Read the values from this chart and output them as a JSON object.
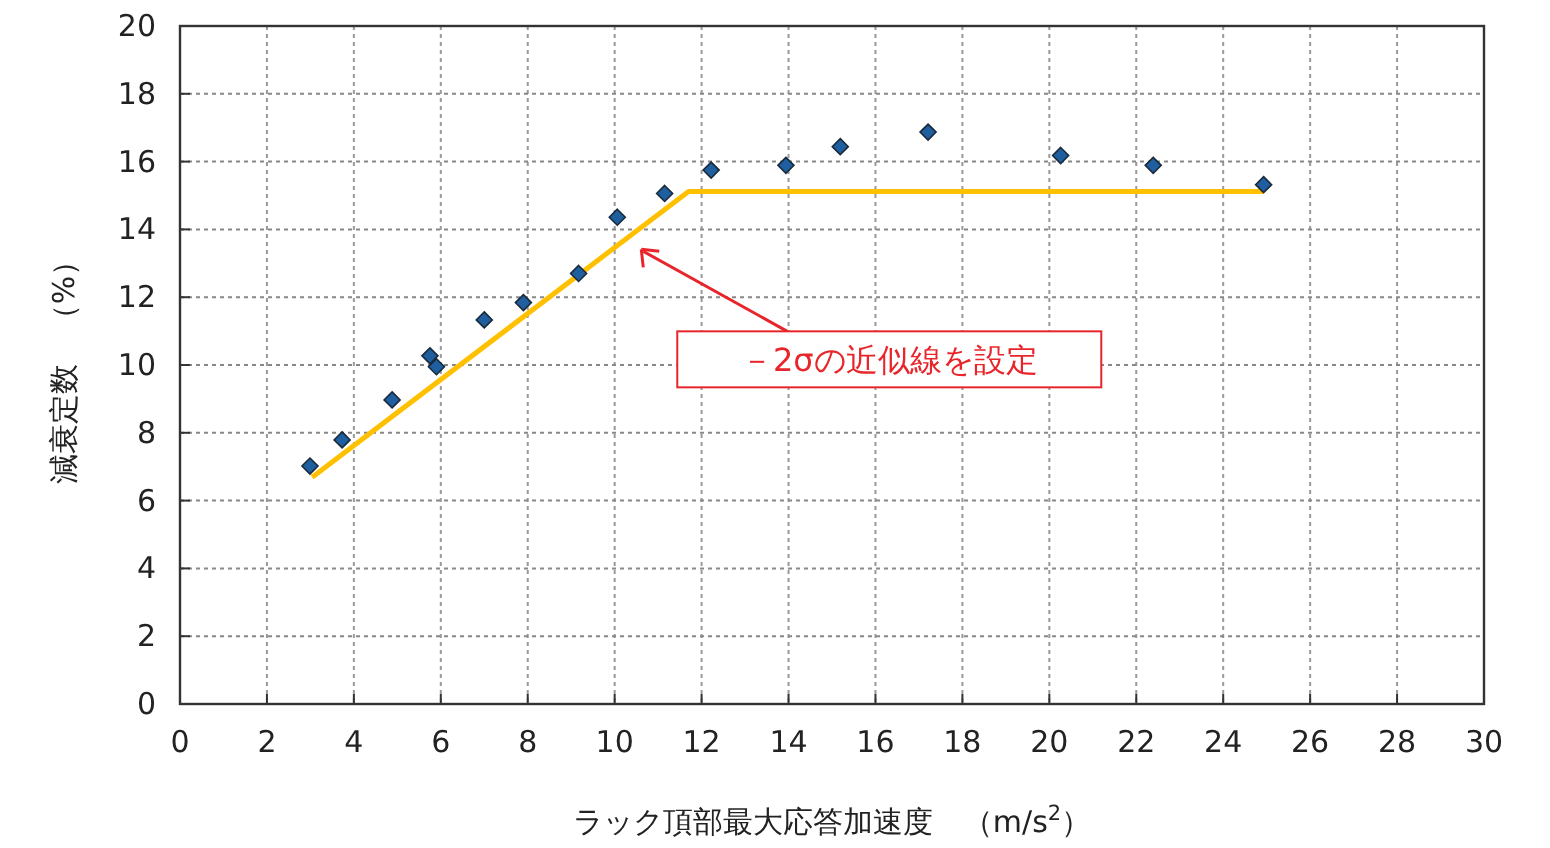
{
  "chart_data": {
    "type": "scatter",
    "xlabel": "ラック頂部最大応答加速度　（m/s$^{2}$）",
    "ylabel": "減衰定数　（%）",
    "xlim": [
      0,
      30
    ],
    "xticks": [
      0,
      2,
      4,
      6,
      8,
      10,
      12,
      14,
      16,
      18,
      20,
      22,
      24,
      26,
      28,
      30
    ],
    "ylim": [
      0,
      20
    ],
    "yticks": [
      0,
      2,
      4,
      6,
      8,
      10,
      12,
      14,
      16,
      18,
      20
    ],
    "grid": true,
    "series": [
      {
        "color": "#1f5fa0",
        "marker": "diamond",
        "x": [
          2.99,
          3.73,
          4.88,
          5.75,
          5.9,
          7.0,
          7.9,
          9.17,
          10.06,
          11.15,
          12.22,
          13.94,
          15.19,
          17.21,
          20.26,
          22.39,
          24.93
        ],
        "values": [
          7.02,
          7.79,
          8.97,
          10.27,
          9.95,
          11.33,
          11.84,
          12.7,
          14.36,
          15.06,
          15.75,
          15.89,
          16.44,
          16.87,
          16.18,
          15.89,
          15.32
        ]
      },
      {
        "type": "line",
        "color": "#ffc000",
        "marker": "none",
        "line_style": "solid",
        "x": [
          3.04,
          11.7,
          24.93
        ],
        "values": [
          6.69,
          15.12,
          15.12
        ]
      }
    ],
    "annotations": [
      {
        "text": "－2σの近似線を設定",
        "x": 10.52,
        "y": 13.53
      }
    ]
  }
}
